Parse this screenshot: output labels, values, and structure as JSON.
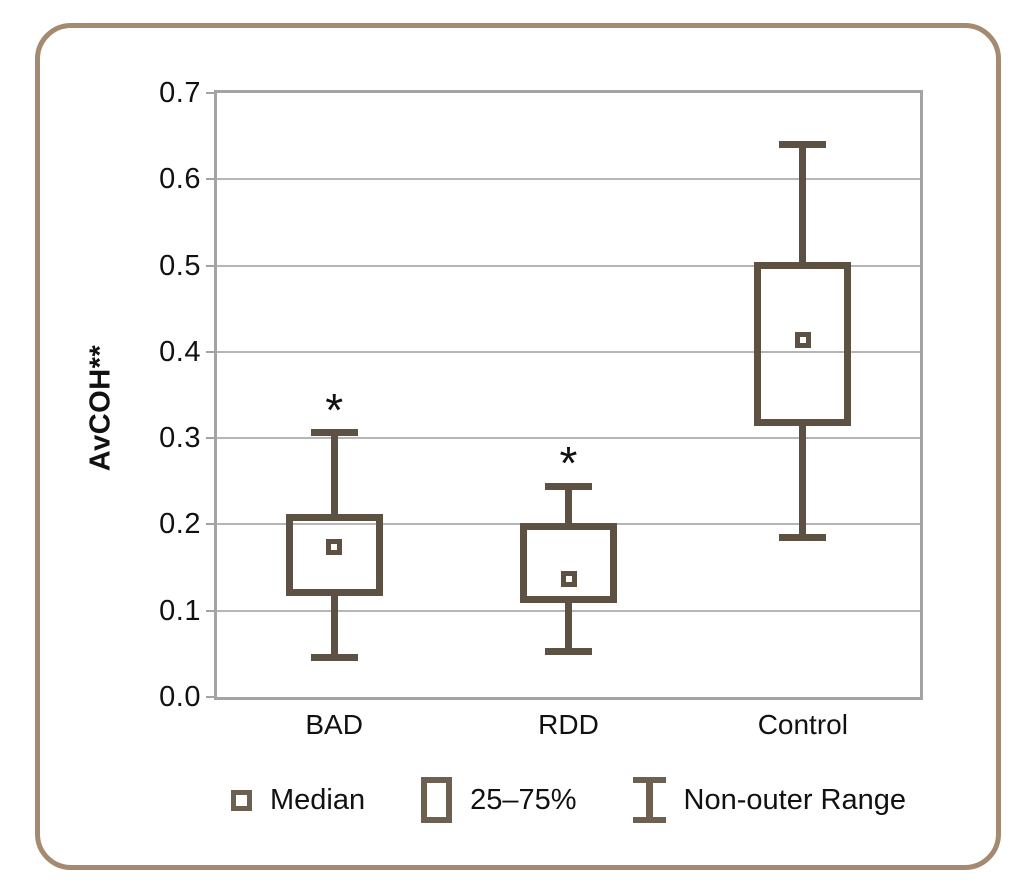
{
  "chart_data": {
    "type": "boxplot",
    "title": "",
    "xlabel": "",
    "ylabel": "AvCOH**",
    "ylim": [
      0,
      0.7
    ],
    "yticks": [
      0,
      0.1,
      0.2,
      0.3,
      0.4,
      0.5,
      0.6,
      0.7
    ],
    "ytick_decimals": 1,
    "grid": true,
    "categories": [
      "BAD",
      "RDD",
      "Control"
    ],
    "series": [
      {
        "name": "BAD",
        "min": 0.046,
        "q1": 0.121,
        "median": 0.174,
        "q3": 0.208,
        "max": 0.306,
        "significance": "*"
      },
      {
        "name": "RDD",
        "min": 0.053,
        "q1": 0.113,
        "median": 0.137,
        "q3": 0.198,
        "max": 0.244,
        "significance": "*"
      },
      {
        "name": "Control",
        "min": 0.185,
        "q1": 0.318,
        "median": 0.414,
        "q3": 0.5,
        "max": 0.64,
        "significance": ""
      }
    ],
    "legend_position": "bottom",
    "legend": [
      {
        "icon": "median-marker-icon",
        "label": "Median"
      },
      {
        "icon": "box-25-75-icon",
        "label": "25–75%"
      },
      {
        "icon": "whisker-range-icon",
        "label": "Non-outer Range"
      }
    ],
    "colors": {
      "box": "#5d5144",
      "legend_icon": "#6e6050",
      "frame": "#a3a3a3",
      "gridline": "#b6b6b6",
      "text": "#111111",
      "outer_border": "#a58a72",
      "significance_marker": "#111111"
    }
  }
}
